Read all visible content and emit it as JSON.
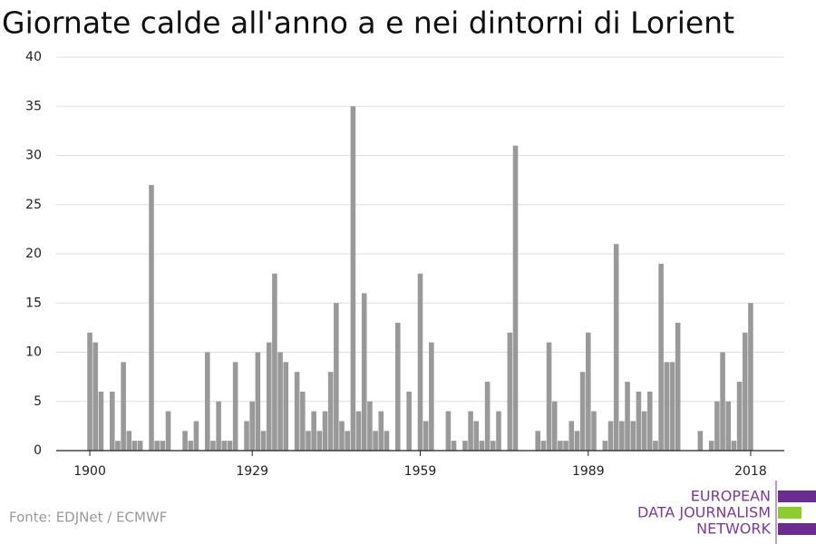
{
  "chart_data": {
    "type": "bar",
    "title": "Giornate calde all'anno a e nei dintorni di Lorient",
    "source": "Fonte: EDJNet / ECMWF",
    "logo": [
      "EUROPEAN",
      "DATA JOURNALISM",
      "NETWORK"
    ],
    "color": "#999999",
    "grid": true,
    "x": [
      1900,
      1901,
      1902,
      1903,
      1904,
      1905,
      1906,
      1907,
      1908,
      1909,
      1910,
      1911,
      1912,
      1913,
      1914,
      1915,
      1916,
      1917,
      1918,
      1919,
      1920,
      1921,
      1922,
      1923,
      1924,
      1925,
      1926,
      1927,
      1928,
      1929,
      1930,
      1931,
      1932,
      1933,
      1934,
      1935,
      1936,
      1937,
      1938,
      1939,
      1940,
      1941,
      1942,
      1943,
      1944,
      1945,
      1946,
      1947,
      1948,
      1949,
      1950,
      1951,
      1952,
      1953,
      1954,
      1955,
      1956,
      1957,
      1958,
      1959,
      1960,
      1961,
      1962,
      1963,
      1964,
      1965,
      1966,
      1967,
      1968,
      1969,
      1970,
      1971,
      1972,
      1973,
      1974,
      1975,
      1976,
      1977,
      1978,
      1979,
      1980,
      1981,
      1982,
      1983,
      1984,
      1985,
      1986,
      1987,
      1988,
      1989,
      1990,
      1991,
      1992,
      1993,
      1994,
      1995,
      1996,
      1997,
      1998,
      1999,
      2000,
      2001,
      2002,
      2003,
      2004,
      2005,
      2006,
      2007,
      2008,
      2009,
      2010,
      2011,
      2012,
      2013,
      2014,
      2015,
      2016,
      2017,
      2018
    ],
    "values": [
      12,
      11,
      6,
      0,
      6,
      1,
      9,
      2,
      1,
      1,
      0,
      27,
      1,
      1,
      4,
      0,
      0,
      2,
      1,
      3,
      0,
      10,
      1,
      5,
      1,
      1,
      9,
      0,
      3,
      5,
      10,
      2,
      11,
      18,
      10,
      9,
      0,
      8,
      6,
      2,
      4,
      2,
      4,
      8,
      15,
      3,
      2,
      35,
      4,
      16,
      5,
      2,
      4,
      2,
      0,
      13,
      0,
      6,
      0,
      18,
      3,
      11,
      0,
      0,
      4,
      1,
      0,
      1,
      4,
      3,
      1,
      7,
      1,
      4,
      0,
      12,
      31,
      0,
      0,
      0,
      2,
      1,
      11,
      5,
      1,
      1,
      3,
      2,
      8,
      12,
      4,
      0,
      1,
      3,
      21,
      3,
      7,
      3,
      6,
      4,
      6,
      1,
      19,
      9,
      9,
      13,
      0,
      0,
      0,
      2,
      0,
      1,
      5,
      10,
      5,
      1,
      7,
      12,
      15
    ],
    "xlim": [
      1894,
      2024
    ],
    "xticks": [
      1900,
      1929,
      1959,
      1989,
      2018
    ],
    "ylim": [
      0,
      40
    ],
    "yticks": [
      0,
      5,
      10,
      15,
      20,
      25,
      30,
      35,
      40
    ]
  }
}
